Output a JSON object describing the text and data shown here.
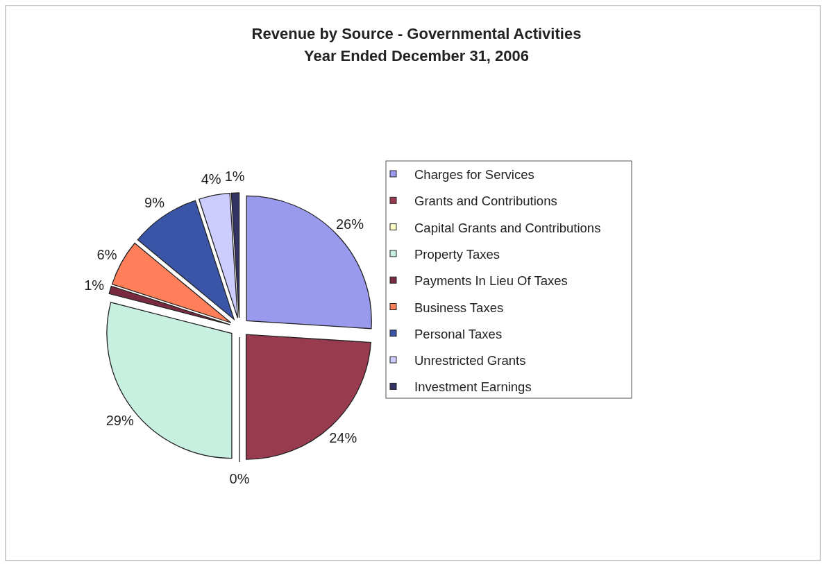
{
  "chart_data": {
    "type": "pie",
    "title": "Revenue by Source - Governmental Activities\nYear Ended December 31, 2006",
    "categories": [
      "Charges for Services",
      "Grants and Contributions",
      "Capital Grants and Contributions",
      "Property Taxes",
      "Payments In Lieu Of Taxes",
      "Business Taxes",
      "Personal Taxes",
      "Unrestricted Grants",
      "Investment Earnings"
    ],
    "values": [
      26,
      24,
      0,
      29,
      1,
      6,
      9,
      4,
      1
    ],
    "colors": [
      "#9999ee",
      "#993b4e",
      "#ffffcc",
      "#c8f0e0",
      "#7a2a40",
      "#ff7f5a",
      "#3a55a8",
      "#ccccff",
      "#333366"
    ],
    "value_labels": [
      "26%",
      "24%",
      "0%",
      "29%",
      "1%",
      "6%",
      "9%",
      "4%",
      "1%"
    ],
    "legend": "right"
  }
}
